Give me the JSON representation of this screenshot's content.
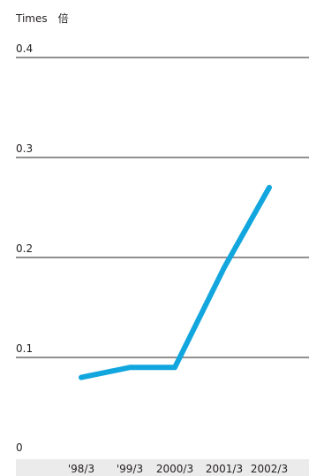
{
  "chart_data": {
    "type": "line",
    "unit_label": "Times　倍",
    "categories": [
      "'98/3",
      "'99/3",
      "2000/3",
      "2001/3",
      "2002/3"
    ],
    "series": [
      {
        "values": [
          0.08,
          0.09,
          0.09,
          0.19,
          0.27
        ]
      }
    ],
    "yticks": [
      0,
      0.1,
      0.2,
      0.3,
      0.4
    ],
    "ytick_labels": [
      "0",
      "0.1",
      "0.2",
      "0.3",
      "0.4"
    ],
    "ylim": [
      0,
      0.4
    ],
    "grid": true,
    "colors": {
      "series": "#12a6de",
      "grid": "#231f20",
      "x_band": "#ebebeb",
      "text": "#231f20"
    }
  }
}
